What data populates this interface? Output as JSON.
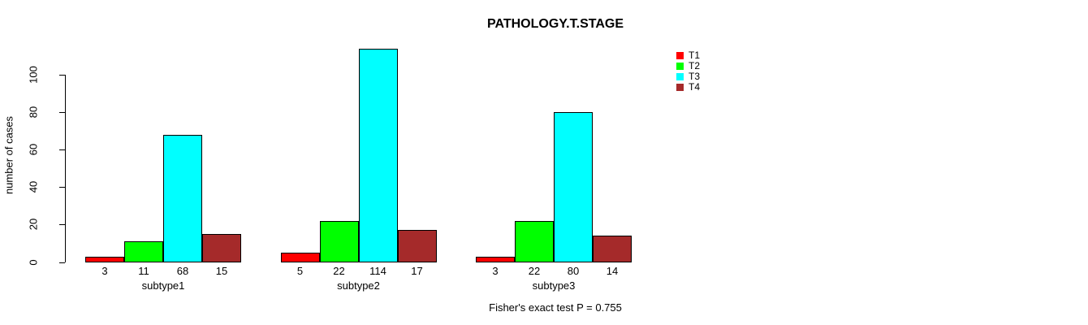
{
  "chart_data": {
    "type": "bar",
    "title": "PATHOLOGY.T.STAGE",
    "ylabel": "number of cases",
    "xlabel": "",
    "categories": [
      "subtype1",
      "subtype2",
      "subtype3"
    ],
    "series": [
      {
        "name": "T1",
        "color": "#ff0000",
        "values": [
          3,
          5,
          3
        ]
      },
      {
        "name": "T2",
        "color": "#00ff00",
        "values": [
          11,
          22,
          22
        ]
      },
      {
        "name": "T3",
        "color": "#00ffff",
        "values": [
          68,
          114,
          80
        ]
      },
      {
        "name": "T4",
        "color": "#a52a2a",
        "values": [
          15,
          17,
          14
        ]
      }
    ],
    "bar_value_labels": [
      [
        "3",
        "11",
        "68",
        "15"
      ],
      [
        "5",
        "22",
        "114",
        "17"
      ],
      [
        "3",
        "22",
        "80",
        "14"
      ]
    ],
    "yticks": [
      0,
      20,
      40,
      60,
      80,
      100
    ],
    "ylim": [
      0,
      115
    ],
    "grid": false,
    "legend_position": "right",
    "bar_border_color": "#000000",
    "annotation": "Fisher's exact test P = 0.755"
  }
}
